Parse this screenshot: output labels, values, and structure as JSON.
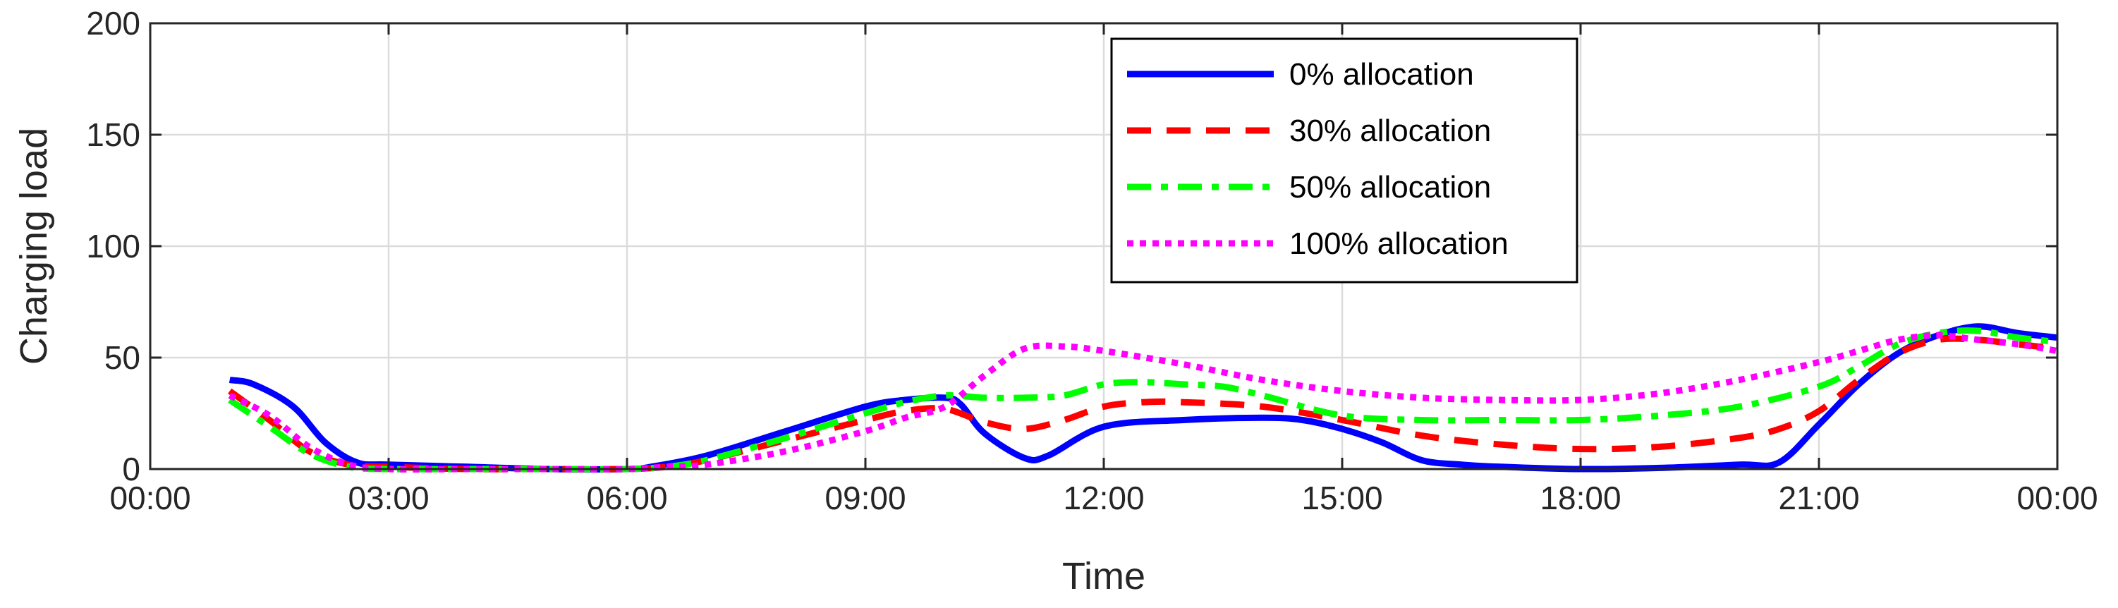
{
  "chart_data": {
    "type": "line",
    "title": "",
    "xlabel": "Time",
    "ylabel": "Charging load",
    "xlim": [
      0,
      24
    ],
    "ylim": [
      0,
      200
    ],
    "x_ticks": [
      0,
      3,
      6,
      9,
      12,
      15,
      18,
      21,
      24
    ],
    "x_tick_labels": [
      "00:00",
      "03:00",
      "06:00",
      "09:00",
      "12:00",
      "15:00",
      "18:00",
      "21:00",
      "00:00"
    ],
    "y_ticks": [
      0,
      50,
      100,
      150,
      200
    ],
    "y_tick_labels": [
      "0",
      "50",
      "100",
      "150",
      "200"
    ],
    "grid": true,
    "legend_position": "top-center",
    "series": [
      {
        "name": "0% allocation",
        "color": "#0000ff",
        "style": "solid",
        "x": [
          1,
          1.3,
          1.8,
          2.2,
          2.6,
          3,
          4,
          5,
          6,
          6.3,
          7,
          8,
          9,
          9.5,
          10,
          10.2,
          10.5,
          11,
          11.3,
          12,
          13,
          14,
          14.5,
          15,
          15.5,
          16,
          16.5,
          17,
          18,
          19,
          20,
          20.5,
          21,
          21.5,
          22,
          22.5,
          23,
          23.5,
          24
        ],
        "y": [
          40,
          38,
          28,
          12,
          3,
          2,
          1,
          0,
          0,
          1,
          6,
          17,
          28,
          31,
          32,
          29,
          16,
          5,
          6,
          19,
          22,
          23,
          22,
          18,
          12,
          4,
          2,
          1,
          0,
          0.5,
          2,
          3,
          20,
          38,
          52,
          60,
          64,
          61,
          59
        ]
      },
      {
        "name": "30% allocation",
        "color": "#ff0000",
        "style": "dashed",
        "x": [
          1,
          1.5,
          2,
          2.5,
          3,
          4,
          5,
          6,
          6.5,
          7,
          8,
          9,
          9.5,
          10,
          10.5,
          11,
          11.5,
          12,
          12.5,
          13,
          14,
          15,
          16,
          17,
          18,
          19,
          20,
          20.5,
          21,
          21.5,
          22,
          22.5,
          23,
          23.5,
          24
        ],
        "y": [
          35,
          22,
          8,
          2,
          1,
          0,
          0,
          0,
          1,
          4,
          13,
          22,
          26,
          27,
          21,
          18,
          22,
          28,
          30,
          30,
          28,
          22,
          15,
          11,
          9,
          10,
          14,
          18,
          26,
          40,
          52,
          58,
          58,
          56,
          54
        ]
      },
      {
        "name": "50% allocation",
        "color": "#00ff00",
        "style": "dashdot",
        "x": [
          1,
          1.5,
          2,
          2.5,
          3,
          4,
          5,
          6,
          6.5,
          7,
          8,
          9,
          9.5,
          10,
          10.5,
          11,
          11.5,
          12,
          12.5,
          13,
          13.5,
          14,
          15,
          16,
          17,
          18,
          19,
          20,
          21,
          21.5,
          22,
          22.5,
          23,
          23.5,
          24
        ],
        "y": [
          31,
          19,
          7,
          1,
          0,
          0,
          0,
          0,
          1,
          4,
          14,
          25,
          30,
          33,
          32,
          32,
          33,
          38,
          39,
          38,
          37,
          33,
          24,
          22,
          22,
          22,
          24,
          28,
          37,
          46,
          56,
          61,
          62,
          59,
          57
        ]
      },
      {
        "name": "100% allocation",
        "color": "#ff00ff",
        "style": "dotted",
        "x": [
          1,
          1.5,
          2,
          2.5,
          3,
          4,
          5,
          6,
          6.5,
          7,
          8,
          9,
          9.5,
          10,
          10.5,
          11,
          11.5,
          12,
          13,
          14,
          15,
          16,
          17,
          18,
          19,
          20,
          21,
          21.5,
          22,
          22.5,
          23,
          23.5,
          24
        ],
        "y": [
          33,
          24,
          10,
          2,
          0,
          0,
          0,
          0,
          1,
          2,
          8,
          17,
          23,
          28,
          42,
          54,
          55,
          53,
          47,
          40,
          35,
          32,
          31,
          31,
          34,
          40,
          48,
          53,
          58,
          60,
          58,
          56,
          53
        ]
      }
    ]
  }
}
